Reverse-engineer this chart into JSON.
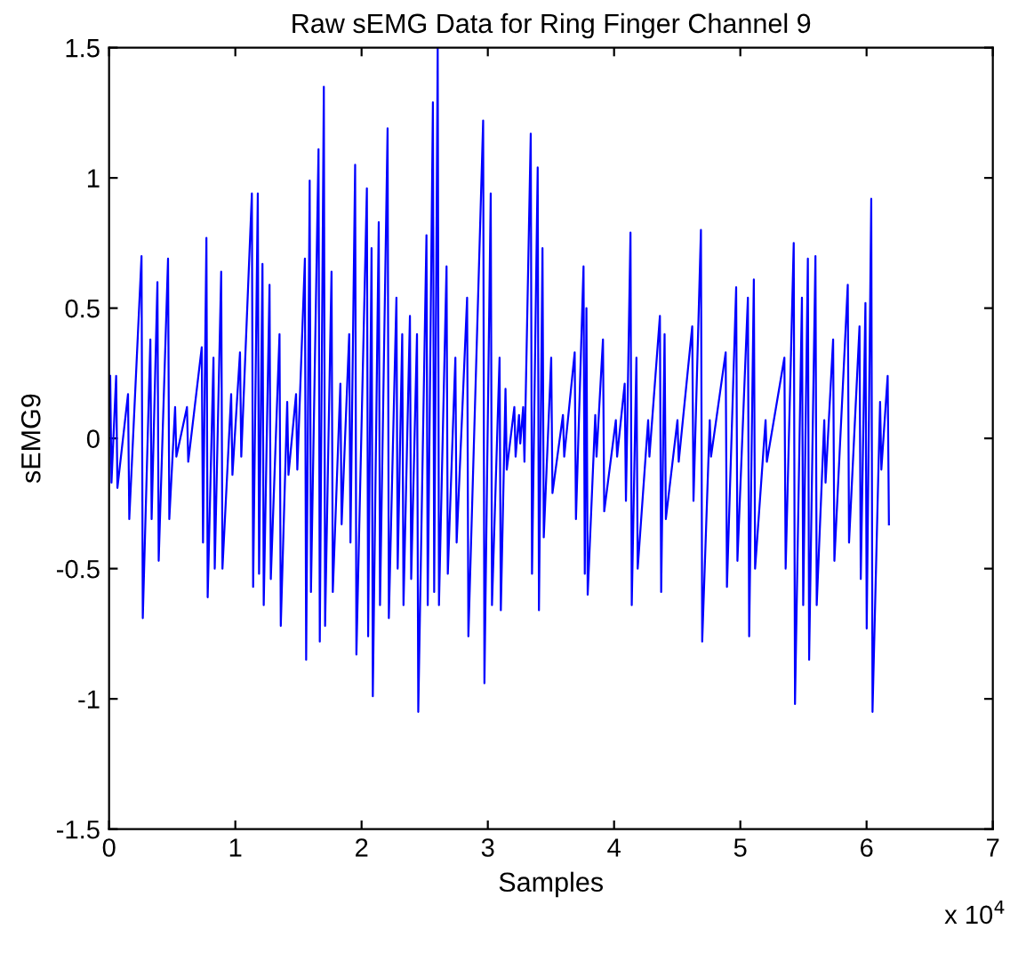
{
  "chart_data": {
    "type": "line",
    "title": "Raw sEMG Data for Ring Finger Channel 9",
    "xlabel": "Samples",
    "ylabel": "sEMG9",
    "annotations": [
      "x 10$^{4}$"
    ],
    "x": [
      0.009,
      0.019,
      0.056,
      0.066,
      0.15,
      0.16,
      0.257,
      0.267,
      0.327,
      0.337,
      0.383,
      0.393,
      0.467,
      0.477,
      0.523,
      0.533,
      0.617,
      0.627,
      0.734,
      0.744,
      0.771,
      0.781,
      0.827,
      0.837,
      0.888,
      0.898,
      0.967,
      0.977,
      1.037,
      1.047,
      1.131,
      1.141,
      1.178,
      1.188,
      1.215,
      1.225,
      1.271,
      1.281,
      1.35,
      1.36,
      1.411,
      1.421,
      1.481,
      1.491,
      1.551,
      1.561,
      1.589,
      1.599,
      1.659,
      1.669,
      1.701,
      1.711,
      1.762,
      1.772,
      1.832,
      1.842,
      1.902,
      1.912,
      1.949,
      1.959,
      2.042,
      2.052,
      2.079,
      2.089,
      2.136,
      2.146,
      2.206,
      2.216,
      2.276,
      2.286,
      2.322,
      2.332,
      2.383,
      2.393,
      2.439,
      2.449,
      2.514,
      2.524,
      2.565,
      2.575,
      2.603,
      2.613,
      2.673,
      2.683,
      2.743,
      2.753,
      2.836,
      2.846,
      2.963,
      2.973,
      3.023,
      3.033,
      3.093,
      3.103,
      3.14,
      3.15,
      3.21,
      3.22,
      3.247,
      3.257,
      3.28,
      3.29,
      3.34,
      3.35,
      3.395,
      3.405,
      3.433,
      3.443,
      3.502,
      3.512,
      3.595,
      3.605,
      3.688,
      3.698,
      3.758,
      3.768,
      3.781,
      3.791,
      3.851,
      3.861,
      3.912,
      3.922,
      4.014,
      4.024,
      4.084,
      4.094,
      4.13,
      4.14,
      4.177,
      4.187,
      4.27,
      4.28,
      4.363,
      4.373,
      4.4,
      4.41,
      4.502,
      4.512,
      4.619,
      4.629,
      4.688,
      4.698,
      4.758,
      4.768,
      4.884,
      4.894,
      4.967,
      4.977,
      5.06,
      5.07,
      5.107,
      5.117,
      5.2,
      5.21,
      5.349,
      5.359,
      5.423,
      5.433,
      5.488,
      5.498,
      5.535,
      5.545,
      5.595,
      5.605,
      5.665,
      5.675,
      5.735,
      5.745,
      5.851,
      5.861,
      5.944,
      5.954,
      5.991,
      6.001,
      6.037,
      6.047,
      6.107,
      6.117,
      6.167,
      6.177
    ],
    "series": [
      {
        "color": "#0000ff",
        "values": [
          0.24,
          -0.17,
          0.24,
          -0.19,
          0.17,
          -0.31,
          0.7,
          -0.69,
          0.38,
          -0.31,
          0.6,
          -0.47,
          0.69,
          -0.31,
          0.12,
          -0.07,
          0.12,
          -0.09,
          0.35,
          -0.4,
          0.77,
          -0.61,
          0.31,
          -0.5,
          0.64,
          -0.5,
          0.17,
          -0.14,
          0.33,
          -0.07,
          0.94,
          -0.57,
          0.94,
          -0.52,
          0.67,
          -0.64,
          0.59,
          -0.54,
          0.4,
          -0.72,
          0.14,
          -0.14,
          0.17,
          -0.12,
          0.69,
          -0.85,
          0.99,
          -0.59,
          1.11,
          -0.78,
          1.35,
          -0.72,
          0.64,
          -0.59,
          0.21,
          -0.33,
          0.4,
          -0.4,
          1.05,
          -0.83,
          0.96,
          -0.76,
          0.73,
          -0.99,
          0.83,
          -0.64,
          1.19,
          -0.69,
          0.54,
          -0.5,
          0.4,
          -0.64,
          0.47,
          -0.54,
          0.4,
          -1.05,
          0.78,
          -0.64,
          1.29,
          -0.59,
          1.5,
          -0.64,
          0.66,
          -0.52,
          0.31,
          -0.4,
          0.54,
          -0.76,
          1.22,
          -0.94,
          0.94,
          -0.64,
          0.31,
          -0.66,
          0.19,
          -0.12,
          0.12,
          -0.07,
          0.09,
          -0.02,
          0.12,
          -0.09,
          1.17,
          -0.52,
          1.04,
          -0.66,
          0.73,
          -0.38,
          0.31,
          -0.21,
          0.09,
          -0.07,
          0.33,
          -0.31,
          0.66,
          -0.52,
          0.5,
          -0.6,
          0.09,
          -0.07,
          0.38,
          -0.28,
          0.07,
          -0.07,
          0.21,
          -0.24,
          0.79,
          -0.64,
          0.31,
          -0.5,
          0.07,
          -0.07,
          0.47,
          -0.59,
          0.4,
          -0.31,
          0.07,
          -0.09,
          0.43,
          -0.24,
          0.8,
          -0.78,
          0.07,
          -0.07,
          0.33,
          -0.57,
          0.58,
          -0.47,
          0.54,
          -0.76,
          0.61,
          -0.5,
          0.07,
          -0.09,
          0.31,
          -0.5,
          0.75,
          -1.02,
          0.54,
          -0.64,
          0.69,
          -0.85,
          0.7,
          -0.64,
          0.07,
          -0.17,
          0.38,
          -0.47,
          0.59,
          -0.4,
          0.43,
          -0.54,
          0.52,
          -0.73,
          0.92,
          -1.05,
          0.14,
          -0.12,
          0.24,
          -0.33
        ]
      }
    ],
    "xlim": [
      0,
      7
    ],
    "xticks": [
      0,
      1,
      2,
      3,
      4,
      5,
      6,
      7
    ],
    "ylim": [
      -1.5,
      1.5
    ],
    "yticks": [
      -1.5,
      -1,
      -0.5,
      0,
      0.5,
      1,
      1.5
    ],
    "grid": false,
    "marker": "none",
    "line_style": "solid"
  }
}
